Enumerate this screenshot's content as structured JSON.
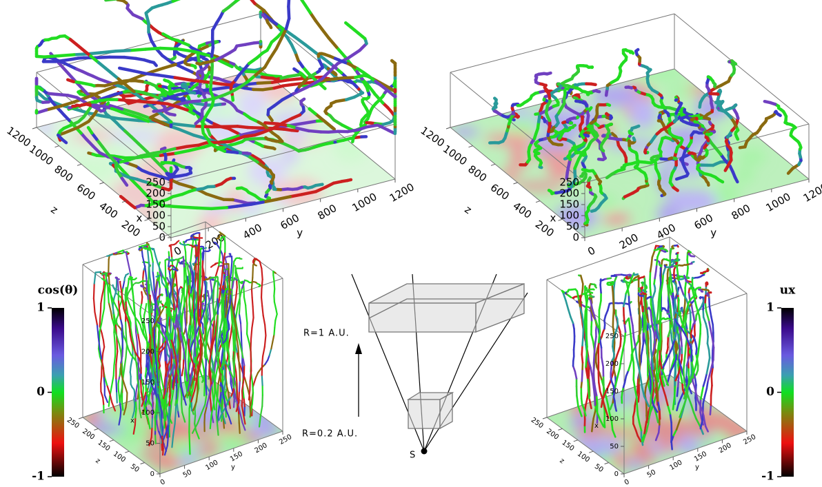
{
  "panels": [
    {
      "x_label": "x",
      "y_label": "y",
      "z_label": "z",
      "xlim": [
        0,
        250
      ],
      "ylim": [
        0,
        1200
      ],
      "zlim": [
        0,
        1200
      ],
      "xticks": [
        0,
        50,
        100,
        150,
        200,
        250
      ],
      "yticks": [
        0,
        200,
        400,
        600,
        800,
        1000,
        1200
      ],
      "zticks": [
        200,
        400,
        600,
        800,
        1000,
        1200
      ]
    },
    {
      "x_label": "x",
      "y_label": "y",
      "z_label": "z",
      "xlim": [
        0,
        250
      ],
      "ylim": [
        0,
        1200
      ],
      "zlim": [
        0,
        1200
      ],
      "xticks": [
        0,
        50,
        100,
        150,
        200,
        250
      ],
      "yticks": [
        0,
        200,
        400,
        600,
        800,
        1000,
        1200
      ],
      "zticks": [
        200,
        400,
        600,
        800,
        1000,
        1200
      ]
    },
    {
      "x_label": "x",
      "y_label": "y",
      "z_label": "z",
      "xlim": [
        0,
        250
      ],
      "ylim": [
        0,
        250
      ],
      "zlim": [
        0,
        250
      ],
      "xticks": [
        0,
        50,
        100,
        150,
        200,
        250
      ],
      "yticks": [
        0,
        50,
        100,
        150,
        200,
        250
      ],
      "zticks": [
        50,
        100,
        150,
        200,
        250
      ]
    },
    {
      "x_label": "x",
      "y_label": "y",
      "z_label": "z",
      "xlim": [
        0,
        250
      ],
      "ylim": [
        0,
        250
      ],
      "zlim": [
        0,
        250
      ],
      "xticks": [
        0,
        50,
        100,
        150,
        200,
        250
      ],
      "yticks": [
        0,
        50,
        100,
        150,
        200,
        250
      ],
      "zticks": [
        50,
        100,
        150,
        200,
        250
      ]
    }
  ],
  "colorbars": [
    {
      "title": "cos(θ)",
      "range": [
        -1,
        1
      ],
      "ticks": [
        1,
        0,
        -1
      ]
    },
    {
      "title": "ux",
      "range": [
        -1,
        1
      ],
      "ticks": [
        1,
        0,
        -1
      ]
    }
  ],
  "diagram": {
    "outer_label": "R=1 A.U.",
    "inner_label": "R=0.2 A.U.",
    "source_label": "S"
  }
}
